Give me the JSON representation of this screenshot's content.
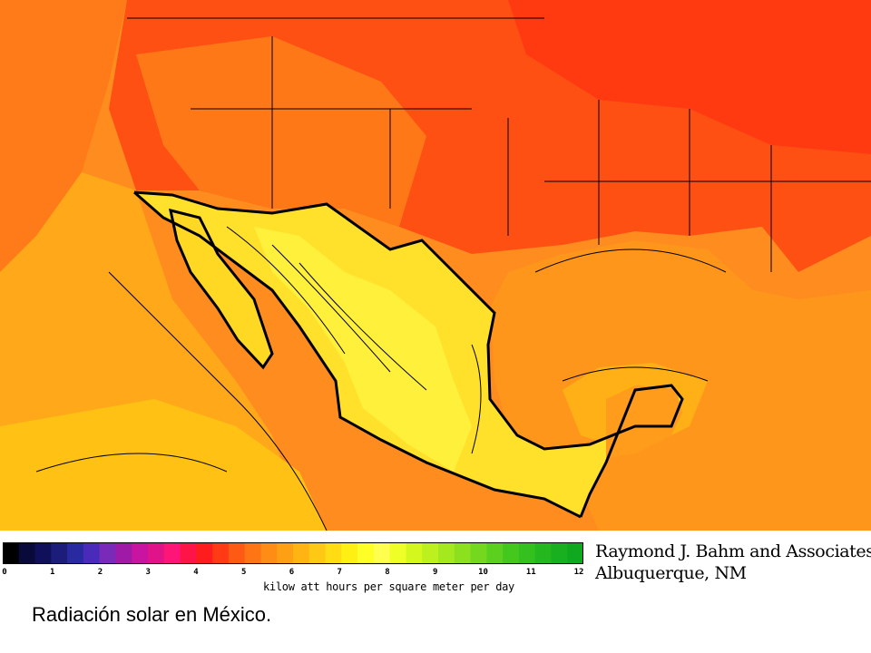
{
  "colors": {
    "ocean_north": "#ff8c1e",
    "land_north": "#ff4a10",
    "land_usa_south": "#ff6a14",
    "ocean_mid": "#ffa81a",
    "ocean_south": "#ffbf10",
    "mexico_land": "#ffe428",
    "plateau": "#fff23a",
    "gulf": "#ff9a1c",
    "boundary": "#000000"
  },
  "legend": {
    "scale_labels": [
      "0",
      "1",
      "2",
      "3",
      "4",
      "5",
      "6",
      "7",
      "8",
      "9",
      "10",
      "11",
      "12"
    ],
    "units_label": "kilow att hours per square meter per day",
    "bands": [
      "#000000",
      "#0a0a3a",
      "#10105a",
      "#1c1c7a",
      "#2a2aa0",
      "#4a2ab8",
      "#7a2ab8",
      "#a01aa8",
      "#c814a0",
      "#e01488",
      "#ff1478",
      "#ff1448",
      "#ff1c1c",
      "#ff3a14",
      "#ff5a14",
      "#ff7414",
      "#ff8c14",
      "#ffa014",
      "#ffb414",
      "#ffc814",
      "#ffdc14",
      "#fff014",
      "#ffff28",
      "#ffff50",
      "#eeff28",
      "#d4f81e",
      "#bcf01e",
      "#a4e81e",
      "#8ce01e",
      "#74d81e",
      "#5cd01e",
      "#44c81e",
      "#34c01e",
      "#24b81e",
      "#18b01e",
      "#10a81e"
    ]
  },
  "credit": {
    "line1": "Raymond J. Bahm and Associates",
    "line2": "Albuquerque, NM"
  },
  "caption": "Radiación solar en México."
}
